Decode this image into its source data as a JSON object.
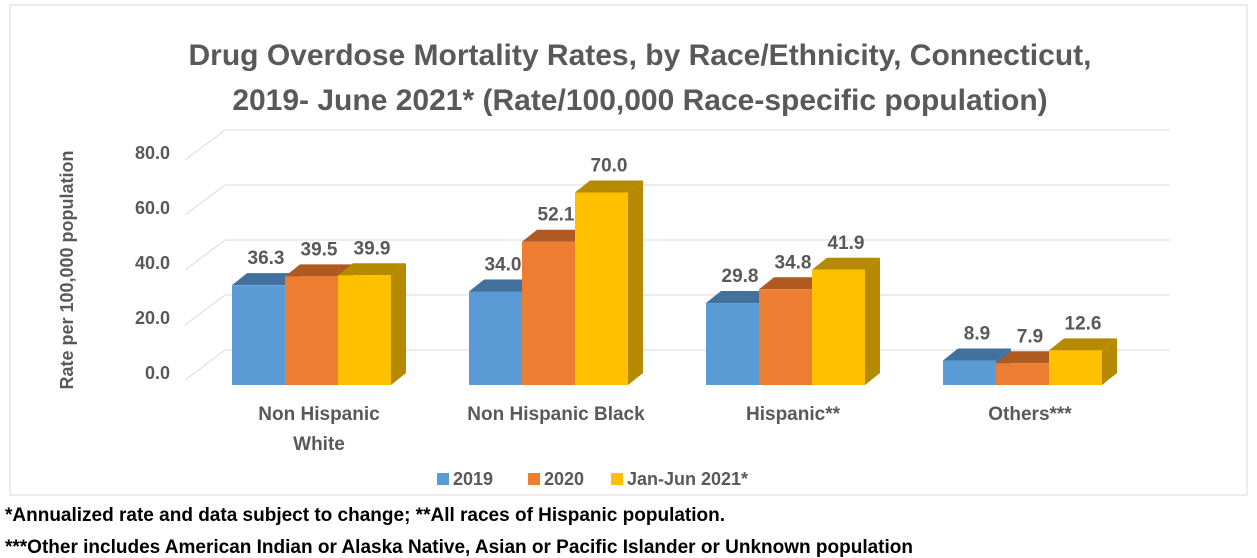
{
  "chart_data": {
    "type": "bar3d",
    "title": "Drug Overdose Mortality Rates, by Race/Ethnicity, Connecticut,",
    "subtitle": "2019- June 2021* (Rate/100,000 Race-specific population)",
    "y_label": "Rate per 100,000 population",
    "categories": [
      "Non Hispanic White",
      "Non Hispanic Black",
      "Hispanic**",
      "Others***"
    ],
    "series": [
      {
        "name": "2019",
        "color": "#5b9bd5",
        "side": "#41719c",
        "values": [
          36.3,
          34.0,
          29.8,
          8.9
        ],
        "value_labels": [
          "36.3",
          "34.0",
          "29.8",
          "8.9"
        ]
      },
      {
        "name": "2020",
        "color": "#ed7d31",
        "side": "#ae5a21",
        "values": [
          39.5,
          52.1,
          34.8,
          7.9
        ],
        "value_labels": [
          "39.5",
          "52.1",
          "34.8",
          "7.9"
        ]
      },
      {
        "name": "Jan-Jun 2021*",
        "color": "#ffc000",
        "side": "#b68a00",
        "values": [
          39.9,
          70.0,
          41.9,
          12.6
        ],
        "value_labels": [
          "39.9",
          "70.0",
          "41.9",
          "12.6"
        ]
      }
    ],
    "ylim": [
      0,
      80
    ],
    "yticks": [
      {
        "value": 0,
        "label": "0.0"
      },
      {
        "value": 20,
        "label": "20.0"
      },
      {
        "value": 40,
        "label": "40.0"
      },
      {
        "value": 60,
        "label": "60.0"
      },
      {
        "value": 80,
        "label": "80.0"
      }
    ],
    "grid": true,
    "legend": "bottom",
    "notes": [
      "*Annualized rate and data subject to change; **All races of Hispanic population.",
      "***Other includes American Indian or Alaska Native, Asian or Pacific Islander or Unknown population"
    ]
  }
}
